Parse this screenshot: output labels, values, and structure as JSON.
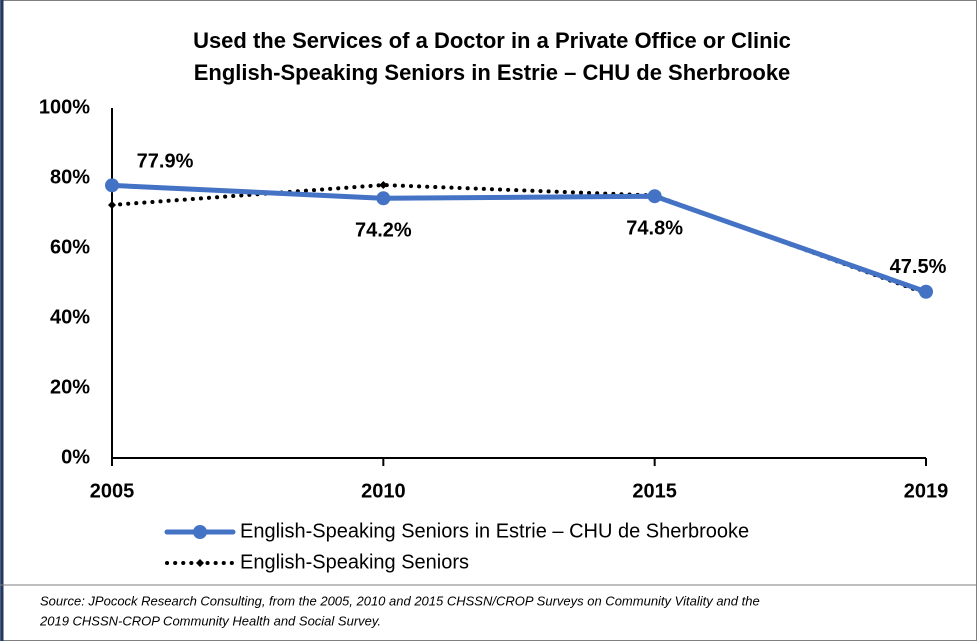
{
  "chart_data": {
    "type": "line",
    "title": [
      "Used the Services of a Doctor in a Private Office or Clinic",
      "English-Speaking Seniors in Estrie – CHU de Sherbrooke"
    ],
    "categories": [
      "2005",
      "2010",
      "2015",
      "2019"
    ],
    "series": [
      {
        "name": "English-Speaking Seniors in Estrie – CHU de Sherbrooke",
        "color": "#4472c4",
        "values": [
          77.9,
          74.2,
          74.8,
          47.5
        ],
        "value_labels": [
          "77.9%",
          "74.2%",
          "74.8%",
          "47.5%"
        ]
      },
      {
        "name": "English-Speaking Seniors",
        "color": "#000000",
        "values": [
          72.3,
          78,
          75,
          47
        ]
      }
    ],
    "ylim": [
      0,
      100
    ],
    "yticks": [
      {
        "value": 0,
        "label": "0%"
      },
      {
        "value": 20,
        "label": "20%"
      },
      {
        "value": 40,
        "label": "40%"
      },
      {
        "value": 60,
        "label": "60%"
      },
      {
        "value": 80,
        "label": "80%"
      },
      {
        "value": 100,
        "label": "100%"
      }
    ],
    "grid": false,
    "legend": "bottom",
    "source": [
      "Source: JPocock Research Consulting, from the 2005, 2010  and 2015  CHSSN/CROP Surveys on Community Vitality and the",
      "2019  CHSSN-CROP Community Health and Social Survey."
    ]
  }
}
